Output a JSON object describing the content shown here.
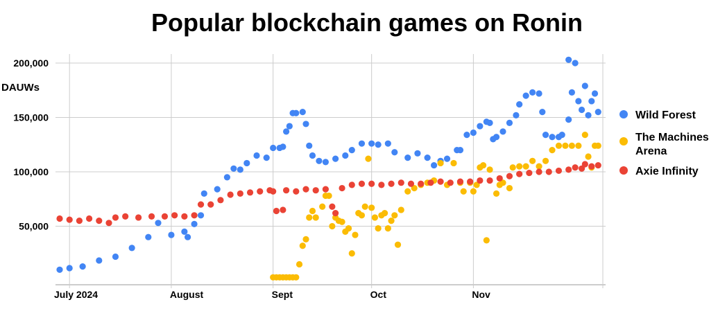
{
  "chart_data": {
    "type": "scatter",
    "title": "Popular blockchain games on Ronin",
    "ylabel": "DAUWs",
    "ylim": [
      0,
      210000
    ],
    "y_ticks": [
      50000,
      100000,
      150000,
      200000
    ],
    "y_tick_labels": [
      "50,000",
      "100,000",
      "150,000",
      "200,000"
    ],
    "x_start": "2024-06-28",
    "x_end": "2024-11-30",
    "x_ticks": [
      "2024-07-01",
      "2024-08-01",
      "2024-09-01",
      "2024-10-01",
      "2024-11-01"
    ],
    "x_tick_labels": [
      "July 2024",
      "August",
      "Sept",
      "Oct",
      "Nov"
    ],
    "grid": true,
    "legend_position": "right",
    "series": [
      {
        "name": "Wild Forest",
        "color": "#4285f4",
        "points": [
          [
            "2024-06-28",
            10000
          ],
          [
            "2024-07-01",
            11500
          ],
          [
            "2024-07-05",
            13000
          ],
          [
            "2024-07-10",
            18500
          ],
          [
            "2024-07-15",
            22000
          ],
          [
            "2024-07-20",
            30000
          ],
          [
            "2024-07-25",
            40000
          ],
          [
            "2024-07-28",
            53000
          ],
          [
            "2024-08-01",
            42000
          ],
          [
            "2024-08-05",
            45000
          ],
          [
            "2024-08-06",
            40000
          ],
          [
            "2024-08-08",
            52000
          ],
          [
            "2024-08-10",
            60000
          ],
          [
            "2024-08-11",
            80000
          ],
          [
            "2024-08-15",
            84000
          ],
          [
            "2024-08-18",
            95000
          ],
          [
            "2024-08-20",
            103000
          ],
          [
            "2024-08-22",
            102000
          ],
          [
            "2024-08-24",
            108000
          ],
          [
            "2024-08-27",
            115000
          ],
          [
            "2024-08-30",
            113000
          ],
          [
            "2024-09-01",
            122000
          ],
          [
            "2024-09-03",
            122000
          ],
          [
            "2024-09-04",
            123000
          ],
          [
            "2024-09-05",
            137000
          ],
          [
            "2024-09-06",
            142000
          ],
          [
            "2024-09-07",
            154000
          ],
          [
            "2024-09-08",
            154000
          ],
          [
            "2024-09-10",
            155000
          ],
          [
            "2024-09-11",
            144000
          ],
          [
            "2024-09-12",
            124000
          ],
          [
            "2024-09-13",
            115000
          ],
          [
            "2024-09-15",
            110000
          ],
          [
            "2024-09-17",
            109000
          ],
          [
            "2024-09-20",
            112000
          ],
          [
            "2024-09-23",
            115000
          ],
          [
            "2024-09-25",
            120000
          ],
          [
            "2024-09-28",
            126000
          ],
          [
            "2024-10-01",
            126000
          ],
          [
            "2024-10-03",
            125000
          ],
          [
            "2024-10-06",
            126000
          ],
          [
            "2024-10-08",
            118000
          ],
          [
            "2024-10-12",
            113000
          ],
          [
            "2024-10-15",
            117000
          ],
          [
            "2024-10-18",
            113000
          ],
          [
            "2024-10-20",
            106000
          ],
          [
            "2024-10-22",
            110000
          ],
          [
            "2024-10-24",
            112000
          ],
          [
            "2024-10-27",
            120000
          ],
          [
            "2024-10-28",
            120000
          ],
          [
            "2024-10-30",
            134000
          ],
          [
            "2024-11-01",
            136000
          ],
          [
            "2024-11-03",
            142000
          ],
          [
            "2024-11-05",
            146000
          ],
          [
            "2024-11-06",
            145000
          ],
          [
            "2024-11-07",
            130000
          ],
          [
            "2024-11-08",
            132000
          ],
          [
            "2024-11-10",
            137000
          ],
          [
            "2024-11-12",
            145000
          ],
          [
            "2024-11-14",
            152000
          ],
          [
            "2024-11-15",
            162000
          ],
          [
            "2024-11-17",
            170000
          ],
          [
            "2024-11-19",
            173000
          ],
          [
            "2024-11-21",
            172000
          ],
          [
            "2024-11-22",
            155000
          ],
          [
            "2024-11-23",
            134000
          ],
          [
            "2024-11-25",
            132000
          ],
          [
            "2024-11-27",
            132000
          ],
          [
            "2024-11-28",
            134000
          ],
          [
            "2024-11-30",
            203000
          ],
          [
            "2024-11-30",
            148000
          ],
          [
            "2024-12-01",
            173000
          ],
          [
            "2024-12-02",
            200000
          ],
          [
            "2024-12-03",
            165000
          ],
          [
            "2024-12-04",
            157000
          ],
          [
            "2024-12-05",
            179000
          ],
          [
            "2024-12-06",
            152000
          ],
          [
            "2024-12-07",
            165000
          ],
          [
            "2024-12-08",
            172000
          ],
          [
            "2024-12-09",
            155000
          ]
        ]
      },
      {
        "name": "The Machines Arena",
        "color": "#fbbc04",
        "points": [
          [
            "2024-09-01",
            3000
          ],
          [
            "2024-09-02",
            3000
          ],
          [
            "2024-09-03",
            3000
          ],
          [
            "2024-09-04",
            3000
          ],
          [
            "2024-09-05",
            3000
          ],
          [
            "2024-09-06",
            3000
          ],
          [
            "2024-09-07",
            3000
          ],
          [
            "2024-09-08",
            3000
          ],
          [
            "2024-09-09",
            15000
          ],
          [
            "2024-09-10",
            32000
          ],
          [
            "2024-09-11",
            38000
          ],
          [
            "2024-09-12",
            58000
          ],
          [
            "2024-09-13",
            64000
          ],
          [
            "2024-09-14",
            58000
          ],
          [
            "2024-09-16",
            68000
          ],
          [
            "2024-09-17",
            78000
          ],
          [
            "2024-09-18",
            78000
          ],
          [
            "2024-09-19",
            50000
          ],
          [
            "2024-09-20",
            58000
          ],
          [
            "2024-09-21",
            55000
          ],
          [
            "2024-09-22",
            54000
          ],
          [
            "2024-09-23",
            45000
          ],
          [
            "2024-09-24",
            48000
          ],
          [
            "2024-09-25",
            25000
          ],
          [
            "2024-09-26",
            42000
          ],
          [
            "2024-09-27",
            62000
          ],
          [
            "2024-09-28",
            60000
          ],
          [
            "2024-09-29",
            68000
          ],
          [
            "2024-09-30",
            112000
          ],
          [
            "2024-10-01",
            67000
          ],
          [
            "2024-10-02",
            58000
          ],
          [
            "2024-10-03",
            48000
          ],
          [
            "2024-10-04",
            60000
          ],
          [
            "2024-10-05",
            62000
          ],
          [
            "2024-10-06",
            48000
          ],
          [
            "2024-10-07",
            55000
          ],
          [
            "2024-10-08",
            60000
          ],
          [
            "2024-10-09",
            33000
          ],
          [
            "2024-10-10",
            65000
          ],
          [
            "2024-10-12",
            82000
          ],
          [
            "2024-10-14",
            85000
          ],
          [
            "2024-10-16",
            88000
          ],
          [
            "2024-10-18",
            90000
          ],
          [
            "2024-10-20",
            92000
          ],
          [
            "2024-10-22",
            108000
          ],
          [
            "2024-10-24",
            88000
          ],
          [
            "2024-10-26",
            108000
          ],
          [
            "2024-10-28",
            90000
          ],
          [
            "2024-10-29",
            82000
          ],
          [
            "2024-10-31",
            90000
          ],
          [
            "2024-11-01",
            82000
          ],
          [
            "2024-11-02",
            88000
          ],
          [
            "2024-11-03",
            104000
          ],
          [
            "2024-11-04",
            106000
          ],
          [
            "2024-11-05",
            37000
          ],
          [
            "2024-11-06",
            102000
          ],
          [
            "2024-11-08",
            80000
          ],
          [
            "2024-11-09",
            88000
          ],
          [
            "2024-11-10",
            90000
          ],
          [
            "2024-11-12",
            85000
          ],
          [
            "2024-11-13",
            104000
          ],
          [
            "2024-11-15",
            105000
          ],
          [
            "2024-11-17",
            105000
          ],
          [
            "2024-11-19",
            110000
          ],
          [
            "2024-11-21",
            105000
          ],
          [
            "2024-11-23",
            110000
          ],
          [
            "2024-11-25",
            120000
          ],
          [
            "2024-11-27",
            124000
          ],
          [
            "2024-11-29",
            124000
          ],
          [
            "2024-12-01",
            124000
          ],
          [
            "2024-12-03",
            124000
          ],
          [
            "2024-12-05",
            134000
          ],
          [
            "2024-12-06",
            114000
          ],
          [
            "2024-12-07",
            104000
          ],
          [
            "2024-12-08",
            124000
          ],
          [
            "2024-12-09",
            124000
          ]
        ]
      },
      {
        "name": "Axie Infinity",
        "color": "#ea4335",
        "points": [
          [
            "2024-06-28",
            57000
          ],
          [
            "2024-07-01",
            56000
          ],
          [
            "2024-07-04",
            55000
          ],
          [
            "2024-07-07",
            57000
          ],
          [
            "2024-07-10",
            55000
          ],
          [
            "2024-07-13",
            53000
          ],
          [
            "2024-07-15",
            58000
          ],
          [
            "2024-07-18",
            59000
          ],
          [
            "2024-07-22",
            58000
          ],
          [
            "2024-07-26",
            59000
          ],
          [
            "2024-07-30",
            59000
          ],
          [
            "2024-08-02",
            60000
          ],
          [
            "2024-08-05",
            59000
          ],
          [
            "2024-08-08",
            60000
          ],
          [
            "2024-08-10",
            70000
          ],
          [
            "2024-08-13",
            70000
          ],
          [
            "2024-08-16",
            74000
          ],
          [
            "2024-08-19",
            79000
          ],
          [
            "2024-08-22",
            80000
          ],
          [
            "2024-08-25",
            81000
          ],
          [
            "2024-08-28",
            82000
          ],
          [
            "2024-08-31",
            83000
          ],
          [
            "2024-09-01",
            82000
          ],
          [
            "2024-09-02",
            64000
          ],
          [
            "2024-09-04",
            65000
          ],
          [
            "2024-09-05",
            83000
          ],
          [
            "2024-09-08",
            82000
          ],
          [
            "2024-09-11",
            84000
          ],
          [
            "2024-09-14",
            83000
          ],
          [
            "2024-09-17",
            84000
          ],
          [
            "2024-09-19",
            68000
          ],
          [
            "2024-09-20",
            62000
          ],
          [
            "2024-09-22",
            85000
          ],
          [
            "2024-09-25",
            88000
          ],
          [
            "2024-09-28",
            89000
          ],
          [
            "2024-10-01",
            89000
          ],
          [
            "2024-10-04",
            88000
          ],
          [
            "2024-10-07",
            89000
          ],
          [
            "2024-10-10",
            90000
          ],
          [
            "2024-10-13",
            89000
          ],
          [
            "2024-10-16",
            89000
          ],
          [
            "2024-10-19",
            90000
          ],
          [
            "2024-10-22",
            91000
          ],
          [
            "2024-10-25",
            90000
          ],
          [
            "2024-10-28",
            91000
          ],
          [
            "2024-10-31",
            91000
          ],
          [
            "2024-11-03",
            92000
          ],
          [
            "2024-11-06",
            92000
          ],
          [
            "2024-11-09",
            94000
          ],
          [
            "2024-11-12",
            96000
          ],
          [
            "2024-11-15",
            98000
          ],
          [
            "2024-11-18",
            99000
          ],
          [
            "2024-11-21",
            100000
          ],
          [
            "2024-11-24",
            100000
          ],
          [
            "2024-11-27",
            101000
          ],
          [
            "2024-11-30",
            102000
          ],
          [
            "2024-12-02",
            104000
          ],
          [
            "2024-12-04",
            103000
          ],
          [
            "2024-12-05",
            107000
          ],
          [
            "2024-12-07",
            105000
          ],
          [
            "2024-12-09",
            106000
          ]
        ]
      }
    ]
  }
}
